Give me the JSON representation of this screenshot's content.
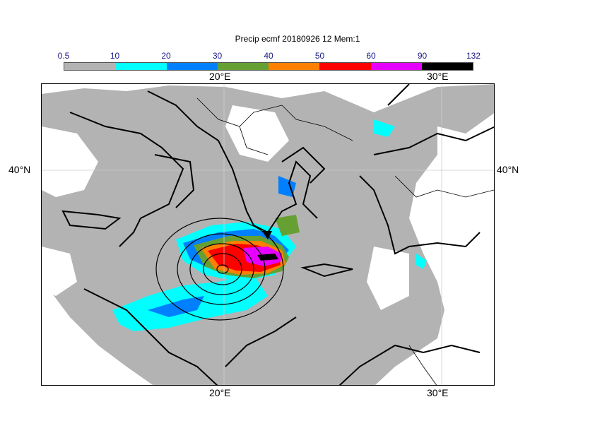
{
  "title": "Precip ecmf 20180926 12 Mem:1",
  "legend": {
    "labels": [
      "0.5",
      "10",
      "20",
      "30",
      "40",
      "50",
      "60",
      "90",
      "132"
    ],
    "colors": [
      "#b3b3b3",
      "#00ffff",
      "#0080ff",
      "#66a033",
      "#ff8000",
      "#ff0000",
      "#e600ff",
      "#000000"
    ]
  },
  "axes": {
    "top_lon": [
      "20°E",
      "30°E"
    ],
    "bottom_lon": [
      "20°E",
      "30°E"
    ],
    "left_lat": "40°N",
    "right_lat": "40°N"
  },
  "map": {
    "field": "Total precipitation",
    "units_bins": "0.5–132",
    "gridlines": true,
    "contours": "mean sea level pressure (black lines)",
    "cyclone_center": "Ionian Sea, west of Peloponnese"
  }
}
